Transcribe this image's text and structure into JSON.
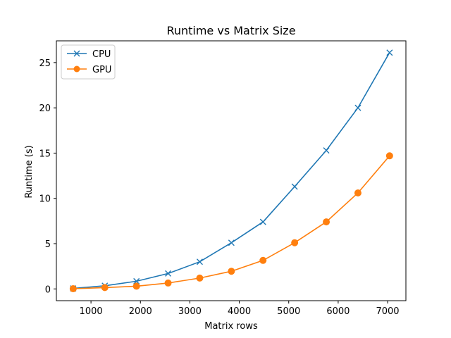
{
  "chart_data": {
    "type": "line",
    "title": "Runtime vs Matrix Size",
    "xlabel": "Matrix rows",
    "ylabel": "Runtime (s)",
    "xlim": [
      300,
      7370
    ],
    "ylim": [
      -1.3,
      27.4
    ],
    "xticks": [
      1000,
      2000,
      3000,
      4000,
      5000,
      6000,
      7000
    ],
    "yticks": [
      0,
      5,
      10,
      15,
      20,
      25
    ],
    "grid": false,
    "legend_position": "top-left",
    "x": [
      640,
      1280,
      1920,
      2560,
      3200,
      3840,
      4480,
      5120,
      5760,
      6400,
      7040
    ],
    "series": [
      {
        "name": "CPU",
        "marker": "x",
        "color": "#1f77b4",
        "values": [
          0.05,
          0.35,
          0.85,
          1.7,
          3.0,
          5.1,
          7.4,
          11.3,
          15.3,
          20.0,
          26.1
        ]
      },
      {
        "name": "GPU",
        "marker": "o",
        "color": "#ff7f0e",
        "values": [
          0.02,
          0.15,
          0.3,
          0.65,
          1.2,
          1.95,
          3.15,
          5.1,
          7.4,
          10.6,
          14.7
        ]
      }
    ]
  }
}
